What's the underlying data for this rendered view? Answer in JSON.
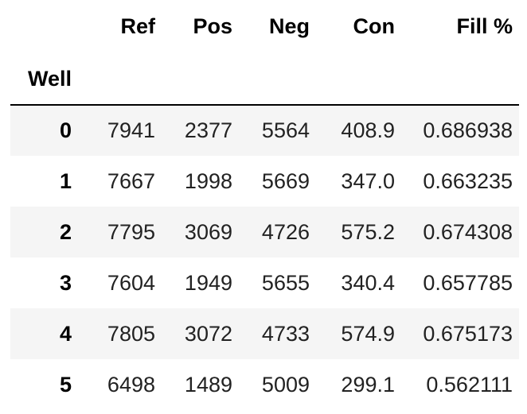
{
  "table": {
    "index_name": "Well",
    "columns": [
      "Ref",
      "Pos",
      "Neg",
      "Con",
      "Fill %"
    ],
    "rows": [
      {
        "index": "0",
        "values": [
          "7941",
          "2377",
          "5564",
          "408.9",
          "0.686938"
        ]
      },
      {
        "index": "1",
        "values": [
          "7667",
          "1998",
          "5669",
          "347.0",
          "0.663235"
        ]
      },
      {
        "index": "2",
        "values": [
          "7795",
          "3069",
          "4726",
          "575.2",
          "0.674308"
        ]
      },
      {
        "index": "3",
        "values": [
          "7604",
          "1949",
          "5655",
          "340.4",
          "0.657785"
        ]
      },
      {
        "index": "4",
        "values": [
          "7805",
          "3072",
          "4733",
          "574.9",
          "0.675173"
        ]
      },
      {
        "index": "5",
        "values": [
          "6498",
          "1489",
          "5009",
          "299.1",
          "0.562111"
        ]
      }
    ]
  }
}
